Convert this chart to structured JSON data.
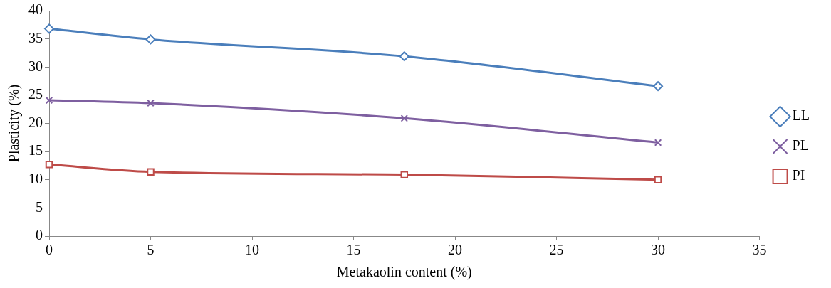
{
  "chart_data": {
    "type": "line",
    "xlabel": "Metakaolin content (%)",
    "ylabel": "Plasticity (%)",
    "x": [
      0,
      5,
      17.5,
      30
    ],
    "series": [
      {
        "name": "LL",
        "color": "#4a7ebb",
        "marker": "diamond",
        "values": [
          36.8,
          34.9,
          31.9,
          26.6
        ]
      },
      {
        "name": "PL",
        "color": "#7e5fa0",
        "marker": "cross",
        "values": [
          24.1,
          23.6,
          20.9,
          16.6
        ]
      },
      {
        "name": "PI",
        "color": "#be4b48",
        "marker": "square",
        "values": [
          12.7,
          11.4,
          10.9,
          10.0
        ]
      }
    ],
    "xlim": [
      0,
      35
    ],
    "xticks": [
      0,
      5,
      10,
      15,
      20,
      25,
      30,
      35
    ],
    "ylim": [
      0,
      40
    ],
    "yticks": [
      0,
      5,
      10,
      15,
      20,
      25,
      30,
      35,
      40
    ],
    "grid": false,
    "legend": "right"
  }
}
